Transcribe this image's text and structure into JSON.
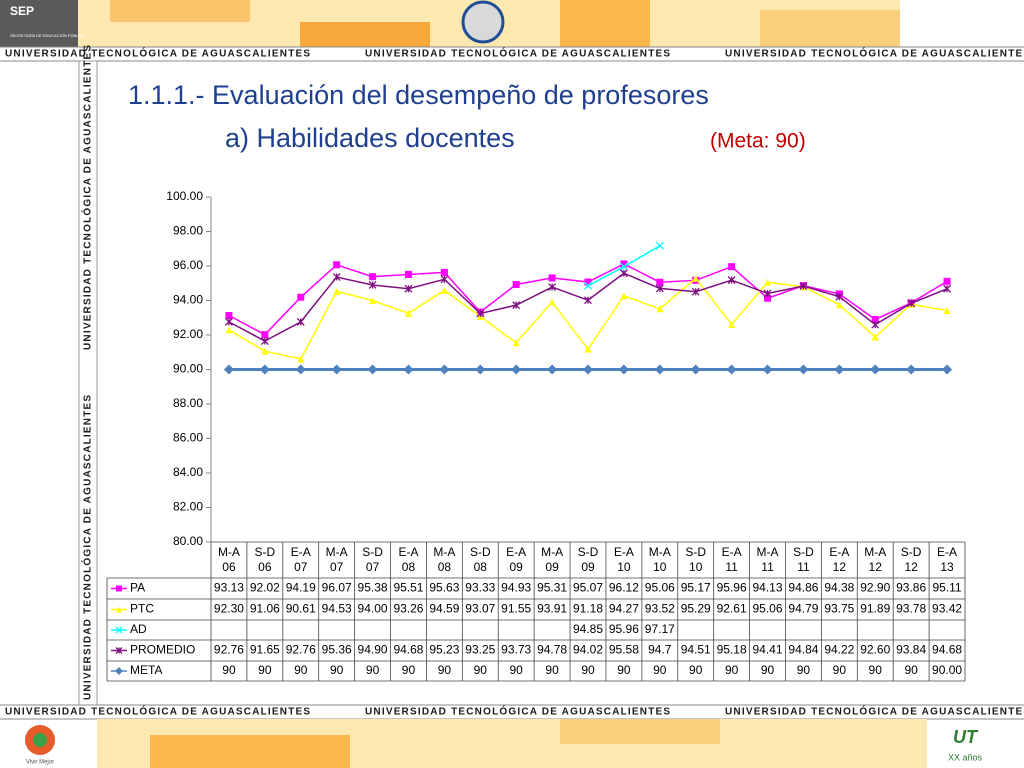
{
  "header": {
    "logo": "SEP",
    "logo_caption": "SECRETARÍA DE EDUCACIÓN PÚBLICA",
    "banner": "UNIVERSIDAD TECNOLÓGICA DE AGUASCALIENTES"
  },
  "footer": {
    "slogan": "Vivir Mejor",
    "anniversary": "XX años"
  },
  "chart_data": {
    "type": "line",
    "title": "1.1.1.- Evaluación del desempeño de profesores",
    "subtitle": "a) Habilidades docentes",
    "annotation": "(Meta: 90)",
    "categories": [
      "M-A 06",
      "S-D 06",
      "E-A 07",
      "M-A 07",
      "S-D 07",
      "E-A 08",
      "M-A 08",
      "S-D 08",
      "E-A 09",
      "M-A 09",
      "S-D 09",
      "E-A 10",
      "M-A 10",
      "S-D 10",
      "E-A 11",
      "M-A 11",
      "S-D 11",
      "E-A 12",
      "M-A 12",
      "S-D 12",
      "E-A 13"
    ],
    "ylim": [
      80,
      100
    ],
    "yticks": [
      {
        "value": 80,
        "label": "80.00"
      },
      {
        "value": 82,
        "label": "82.00"
      },
      {
        "value": 84,
        "label": "84.00"
      },
      {
        "value": 86,
        "label": "86.00"
      },
      {
        "value": 88,
        "label": "88.00"
      },
      {
        "value": 90,
        "label": "90.00"
      },
      {
        "value": 92,
        "label": "92.00"
      },
      {
        "value": 94,
        "label": "94.00"
      },
      {
        "value": 96,
        "label": "96.00"
      },
      {
        "value": 98,
        "label": "98.00"
      },
      {
        "value": 100,
        "label": "100.00"
      }
    ],
    "series": [
      {
        "name": "PA",
        "color": "#ff00ff",
        "marker": "square",
        "values": [
          93.13,
          92.02,
          94.19,
          96.07,
          95.38,
          95.51,
          95.63,
          93.33,
          94.93,
          95.31,
          95.07,
          96.12,
          95.06,
          95.17,
          95.96,
          94.13,
          94.86,
          94.38,
          92.9,
          93.86,
          95.11
        ],
        "value_labels": [
          "93.13",
          "92.02",
          "94.19",
          "96.07",
          "95.38",
          "95.51",
          "95.63",
          "93.33",
          "94.93",
          "95.31",
          "95.07",
          "96.12",
          "95.06",
          "95.17",
          "95.96",
          "94.13",
          "94.86",
          "94.38",
          "92.90",
          "93.86",
          "95.11"
        ]
      },
      {
        "name": "PTC",
        "color": "#ffff00",
        "marker": "triangle",
        "values": [
          92.3,
          91.06,
          90.61,
          94.53,
          94,
          93.26,
          94.59,
          93.07,
          91.55,
          93.91,
          91.18,
          94.27,
          93.52,
          95.29,
          92.61,
          95.06,
          94.79,
          93.75,
          91.89,
          93.78,
          93.42
        ],
        "value_labels": [
          "92.30",
          "91.06",
          "90.61",
          "94.53",
          "94.00",
          "93.26",
          "94.59",
          "93.07",
          "91.55",
          "93.91",
          "91.18",
          "94.27",
          "93.52",
          "95.29",
          "92.61",
          "95.06",
          "94.79",
          "93.75",
          "91.89",
          "93.78",
          "93.42"
        ]
      },
      {
        "name": "AD",
        "color": "#00ffff",
        "marker": "x",
        "values": [
          null,
          null,
          null,
          null,
          null,
          null,
          null,
          null,
          null,
          null,
          94.85,
          95.96,
          97.17,
          null,
          null,
          null,
          null,
          null,
          null,
          null,
          null
        ],
        "value_labels": [
          null,
          null,
          null,
          null,
          null,
          null,
          null,
          null,
          null,
          null,
          "94.85",
          "95.96",
          "97.17",
          null,
          null,
          null,
          null,
          null,
          null,
          null,
          null
        ]
      },
      {
        "name": "PROMEDIO",
        "color": "#7f0f7f",
        "marker": "star",
        "values": [
          92.76,
          91.65,
          92.76,
          95.36,
          94.9,
          94.68,
          95.23,
          93.25,
          93.73,
          94.78,
          94.02,
          95.58,
          94.7,
          94.51,
          95.18,
          94.41,
          94.84,
          94.22,
          92.6,
          93.84,
          94.68
        ],
        "value_labels": [
          "92.76",
          "91.65",
          "92.76",
          "95.36",
          "94.90",
          "94.68",
          "95.23",
          "93.25",
          "93.73",
          "94.78",
          "94.02",
          "95.58",
          "94.7",
          "94.51",
          "95.18",
          "94.41",
          "94.84",
          "94.22",
          "92.60",
          "93.84",
          "94.68"
        ]
      },
      {
        "name": "META",
        "color": "#4f81bd",
        "marker": "diamond",
        "values": [
          90,
          90,
          90,
          90,
          90,
          90,
          90,
          90,
          90,
          90,
          90,
          90,
          90,
          90,
          90,
          90,
          90,
          90,
          90,
          90,
          90
        ],
        "value_labels": [
          "90",
          "90",
          "90",
          "90",
          "90",
          "90",
          "90",
          "90",
          "90",
          "90",
          "90",
          "90",
          "90",
          "90",
          "90",
          "90",
          "90",
          "90",
          "90",
          "90",
          "90.00"
        ]
      }
    ]
  }
}
